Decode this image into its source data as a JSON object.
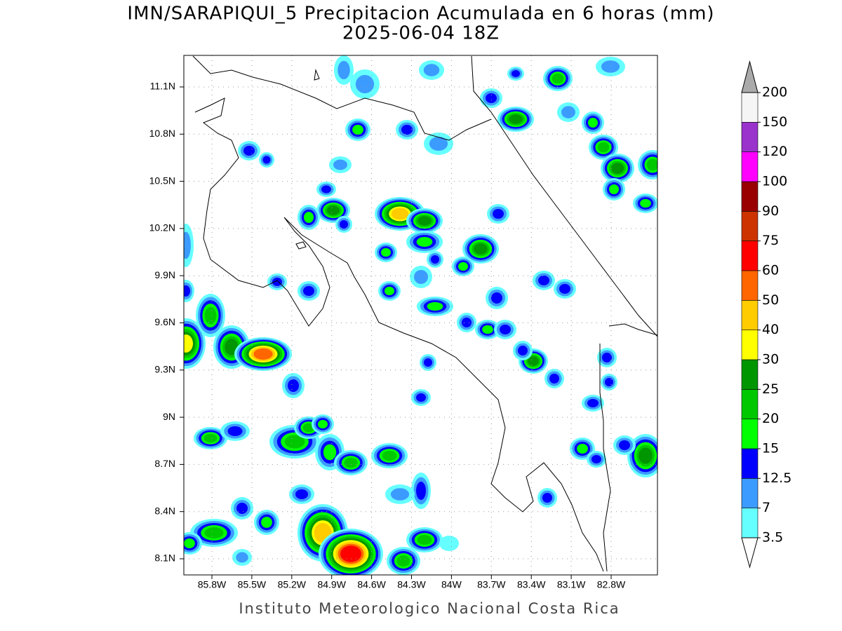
{
  "title": "IMN/SARAPIQUI_5 Precipitacion Acumulada en 6 horas (mm)",
  "subtitle": "2025-06-04 18Z",
  "lat_labels": [
    "11.1N",
    "10.8N",
    "10.5N",
    "10.2N",
    "9.9N",
    "9.6N",
    "9.3N",
    "9N",
    "8.7N",
    "8.4N",
    "8.1N"
  ],
  "lon_labels": [
    "85.8W",
    "85.5W",
    "85.2W",
    "84.9W",
    "84.6W",
    "84.3W",
    "84W",
    "83.7W",
    "83.4W",
    "83.1W",
    "82.8W"
  ],
  "colorbar": {
    "levels": [
      3.5,
      7,
      12.5,
      15,
      20,
      25,
      30,
      40,
      50,
      60,
      75,
      90,
      100,
      120,
      150,
      200
    ],
    "colors": [
      "#66ffff",
      "#3c9bff",
      "#0000ff",
      "#00ff00",
      "#00c800",
      "#009600",
      "#ffff00",
      "#ffcc00",
      "#ff6600",
      "#ff0000",
      "#cc3300",
      "#990000",
      "#ff00ff",
      "#9933cc",
      "#f5f5f5"
    ],
    "over_color": "#aaaaaa",
    "under_color": "#ffffff"
  },
  "footer": "Instituto Meteorologico Nacional Costa Rica"
}
